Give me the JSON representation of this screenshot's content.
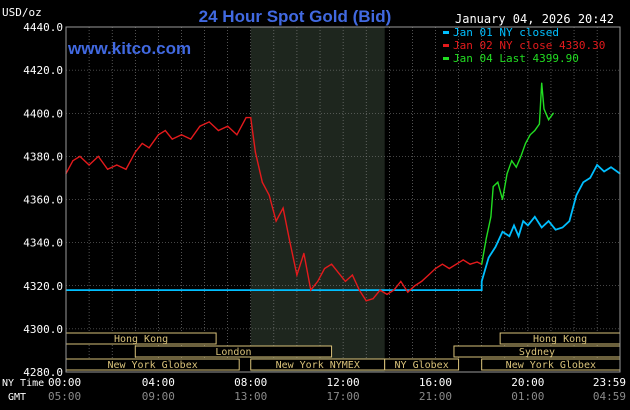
{
  "chart_data": {
    "type": "line",
    "title": "24 Hour Spot Gold (Bid)",
    "watermark": "www.kitco.com",
    "timestamp": "January 04, 2026 20:42",
    "ylabel": "USD/oz",
    "ylim": [
      4280,
      4440
    ],
    "y_ticks": [
      "4440.0",
      "4420.0",
      "4400.0",
      "4380.0",
      "4360.0",
      "4340.0",
      "4320.0",
      "4300.0",
      "4280.0"
    ],
    "x_row_label_ny": "NY Time",
    "x_row_label_gmt": "GMT",
    "x_ticks_ny": [
      "00:00",
      "04:00",
      "08:00",
      "12:00",
      "16:00",
      "20:00",
      "23:59"
    ],
    "x_ticks_gmt": [
      "05:00",
      "09:00",
      "13:00",
      "17:00",
      "21:00",
      "01:00",
      "04:59"
    ],
    "grid": true,
    "legend_position": "top-right",
    "legend": [
      {
        "label": "Jan 01 NY closed",
        "color": "#00bfff"
      },
      {
        "label": "Jan 02 NY close 4330.30",
        "color": "#e41a1c"
      },
      {
        "label": "Jan 04 Last 4399.90",
        "color": "#22dd22"
      }
    ],
    "shaded_session_hours": [
      8,
      13.8
    ],
    "sessions": [
      {
        "label": "Hong Kong",
        "start": 0,
        "end": 6.5,
        "row": 1
      },
      {
        "label": "London",
        "start": 3,
        "end": 11.5,
        "row": 2
      },
      {
        "label": "New York Globex",
        "start": 0,
        "end": 7.5,
        "row": 3
      },
      {
        "label": "New York NYMEX",
        "start": 8,
        "end": 13.8,
        "row": 3
      },
      {
        "label": "NY Globex",
        "start": 13.8,
        "end": 17,
        "row": 3
      },
      {
        "label": "Hong Kong",
        "start": 18.8,
        "end": 23.99,
        "row": 1
      },
      {
        "label": "Sydney",
        "start": 16.8,
        "end": 23.99,
        "row": 2
      },
      {
        "label": "New York Globex",
        "start": 18,
        "end": 23.99,
        "row": 3
      }
    ],
    "series": [
      {
        "name": "Jan 01 NY closed",
        "color": "#00bfff",
        "x": [
          0,
          18,
          18.0,
          18.3,
          18.6,
          18.9,
          19.2,
          19.4,
          19.6,
          19.8,
          20.0,
          20.3,
          20.6,
          20.9,
          21.2,
          21.5,
          21.8,
          22.1,
          22.4,
          22.7,
          23.0,
          23.3,
          23.6,
          23.99
        ],
        "values": [
          4318,
          4318,
          4322,
          4333,
          4338,
          4345,
          4343,
          4348,
          4343,
          4350,
          4348,
          4352,
          4347,
          4350,
          4346,
          4347,
          4350,
          4362,
          4368,
          4370,
          4376,
          4373,
          4375,
          4372
        ]
      },
      {
        "name": "Jan 02 NY close 4330.30",
        "color": "#e41a1c",
        "x": [
          0,
          0.3,
          0.6,
          1.0,
          1.4,
          1.8,
          2.2,
          2.6,
          3.0,
          3.3,
          3.6,
          4.0,
          4.3,
          4.6,
          5.0,
          5.4,
          5.8,
          6.2,
          6.6,
          7.0,
          7.4,
          7.8,
          8.0,
          8.2,
          8.5,
          8.8,
          9.1,
          9.4,
          9.7,
          10.0,
          10.3,
          10.6,
          10.9,
          11.2,
          11.5,
          11.8,
          12.1,
          12.4,
          12.7,
          13.0,
          13.3,
          13.6,
          13.9,
          14.2,
          14.5,
          14.8,
          15.1,
          15.4,
          15.7,
          16.0,
          16.3,
          16.6,
          16.9,
          17.2,
          17.5,
          17.8,
          18.0
        ],
        "values": [
          4372,
          4378,
          4380,
          4376,
          4380,
          4374,
          4376,
          4374,
          4382,
          4386,
          4384,
          4390,
          4392,
          4388,
          4390,
          4388,
          4394,
          4396,
          4392,
          4394,
          4390,
          4398,
          4398,
          4382,
          4368,
          4362,
          4350,
          4356,
          4340,
          4325,
          4335,
          4318,
          4322,
          4328,
          4330,
          4326,
          4322,
          4325,
          4318,
          4313,
          4314,
          4318,
          4316,
          4318,
          4322,
          4317,
          4320,
          4322,
          4325,
          4328,
          4330,
          4328,
          4330,
          4332,
          4330,
          4331,
          4330
        ]
      },
      {
        "name": "Jan 04 Last 4399.90",
        "color": "#22dd22",
        "x": [
          18,
          18.2,
          18.4,
          18.5,
          18.7,
          18.9,
          19.1,
          19.3,
          19.5,
          19.7,
          19.9,
          20.1,
          20.3,
          20.5,
          20.6,
          20.7,
          20.9,
          21.1
        ],
        "values": [
          4330,
          4342,
          4352,
          4366,
          4368,
          4360,
          4372,
          4378,
          4375,
          4380,
          4386,
          4390,
          4392,
          4395,
          4414,
          4402,
          4397,
          4400
        ]
      }
    ]
  }
}
